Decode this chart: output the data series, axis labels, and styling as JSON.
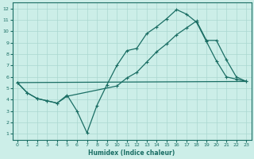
{
  "xlabel": "Humidex (Indice chaleur)",
  "bg_color": "#cceee8",
  "line_color": "#1a6e64",
  "grid_color": "#aad8d0",
  "xlim": [
    -0.5,
    23.5
  ],
  "ylim": [
    0.5,
    12.5
  ],
  "xticks": [
    0,
    1,
    2,
    3,
    4,
    5,
    6,
    7,
    8,
    9,
    10,
    11,
    12,
    13,
    14,
    15,
    16,
    17,
    18,
    19,
    20,
    21,
    22,
    23
  ],
  "yticks": [
    1,
    2,
    3,
    4,
    5,
    6,
    7,
    8,
    9,
    10,
    11,
    12
  ],
  "line1_x": [
    0,
    1,
    2,
    3,
    4,
    5,
    6,
    7,
    8,
    9,
    10,
    11,
    12,
    13,
    14,
    15,
    16,
    17,
    18,
    19,
    20,
    21,
    22,
    23
  ],
  "line1_y": [
    5.5,
    4.6,
    4.1,
    3.9,
    3.7,
    4.4,
    3.0,
    1.1,
    3.5,
    5.3,
    7.0,
    8.3,
    8.5,
    9.8,
    10.4,
    11.1,
    11.9,
    11.5,
    10.8,
    9.1,
    7.4,
    6.0,
    5.8,
    5.6
  ],
  "line2_x": [
    0,
    1,
    2,
    3,
    4,
    5,
    10,
    11,
    12,
    13,
    14,
    15,
    16,
    17,
    18,
    19,
    20,
    21,
    22,
    23
  ],
  "line2_y": [
    5.5,
    4.6,
    4.1,
    3.9,
    3.7,
    4.3,
    5.2,
    5.9,
    6.4,
    7.3,
    8.2,
    8.9,
    9.7,
    10.3,
    10.9,
    9.2,
    9.2,
    7.5,
    6.0,
    5.6
  ],
  "line3_x": [
    0,
    23
  ],
  "line3_y": [
    5.5,
    5.6
  ]
}
